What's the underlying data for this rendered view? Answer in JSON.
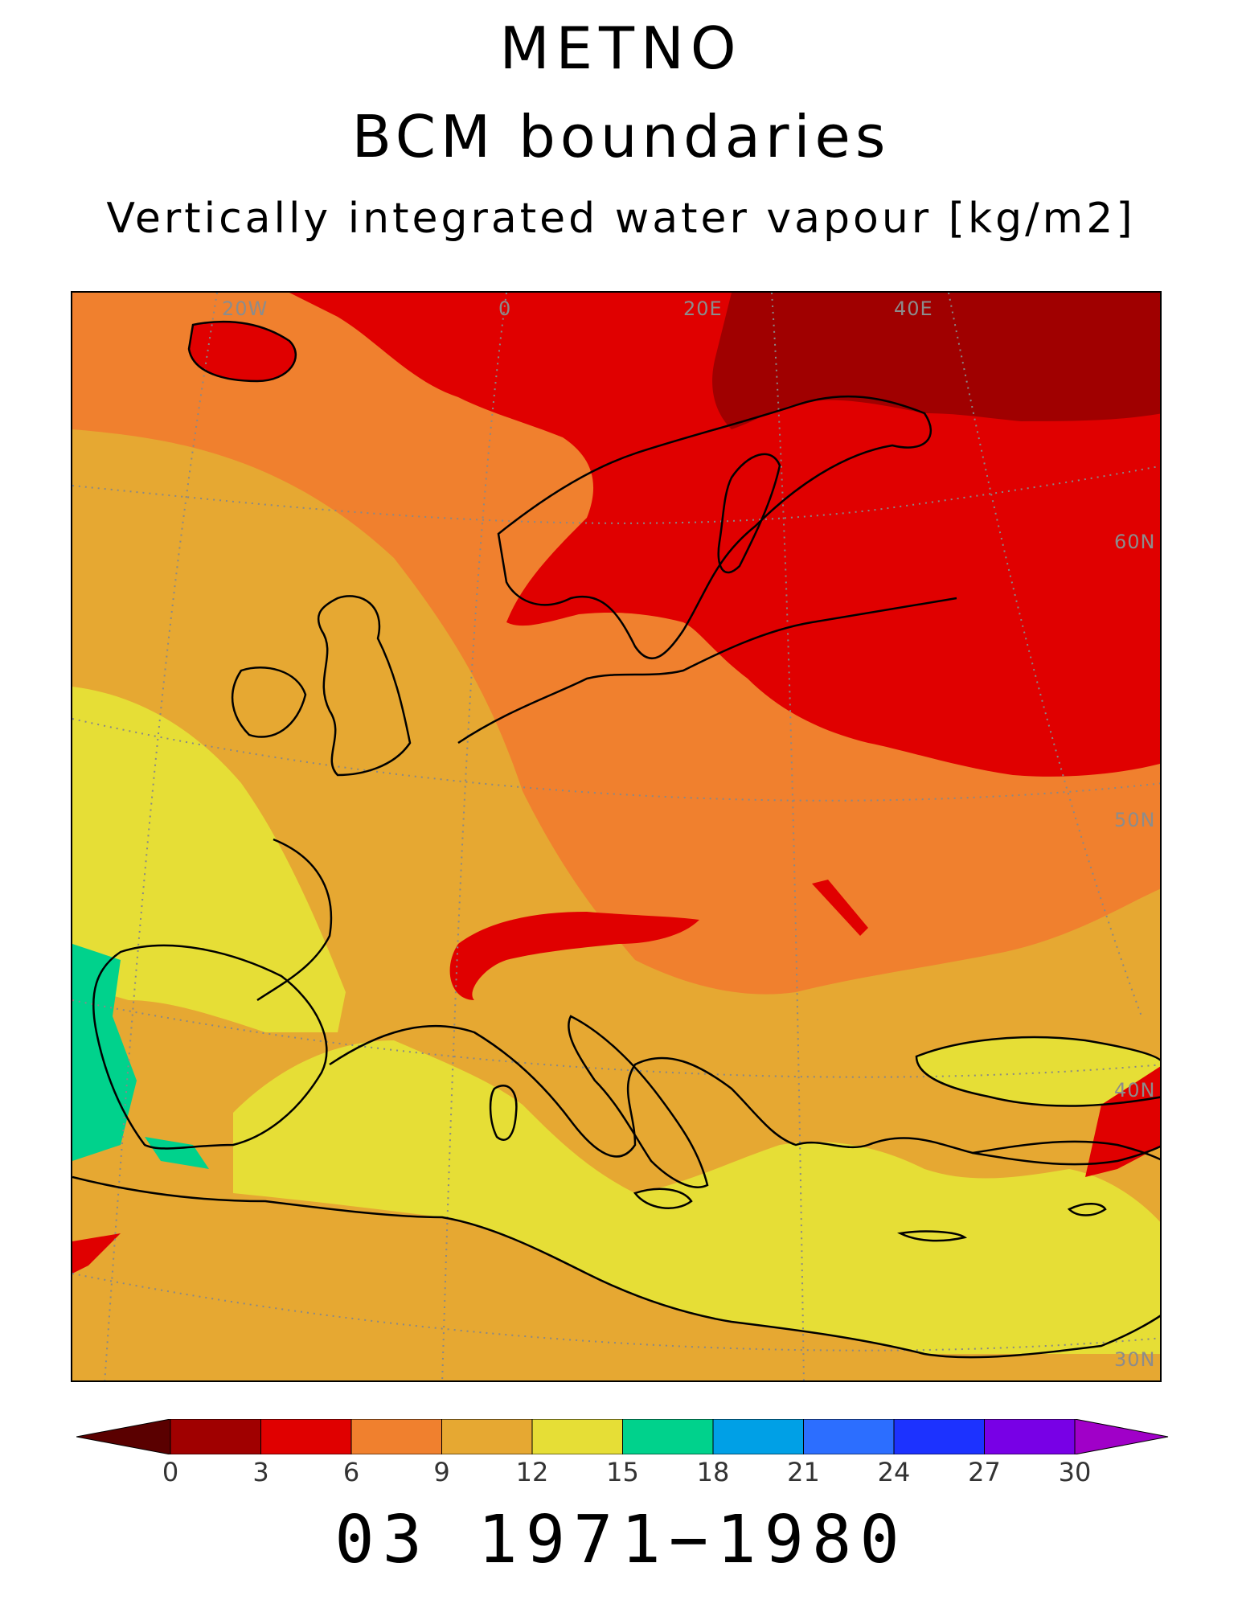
{
  "title_line1": "METNO",
  "title_line2": "BCM boundaries",
  "title_line3": "Vertically integrated water vapour [kg/m2]",
  "footer": "03 1971−1980",
  "grid_labels": {
    "lon_20w": "20W",
    "lon_0": "0",
    "lon_20e": "20E",
    "lon_40e": "40E",
    "lat_60n": "60N",
    "lat_50n": "50N",
    "lat_40n": "40N",
    "lat_30n": "30N"
  },
  "colorbar": {
    "ticks": [
      "0",
      "3",
      "6",
      "9",
      "12",
      "15",
      "18",
      "21",
      "24",
      "27",
      "30"
    ],
    "under_color": "#5a0000",
    "colors": [
      "#a00000",
      "#e00000",
      "#f0802e",
      "#e6a832",
      "#e6de36",
      "#00d28c",
      "#00a0e6",
      "#2c6eff",
      "#1c32ff",
      "#7800e6"
    ],
    "over_color": "#a000c8"
  },
  "map": {
    "projection": "polar stereographic",
    "region": "Europe",
    "field_colors": {
      "c0_3": "#a00000",
      "c3_6": "#e00000",
      "c6_9": "#f0802e",
      "c9_12": "#e6a832",
      "c12_15": "#e6de36",
      "c15_18": "#00d28c"
    }
  }
}
